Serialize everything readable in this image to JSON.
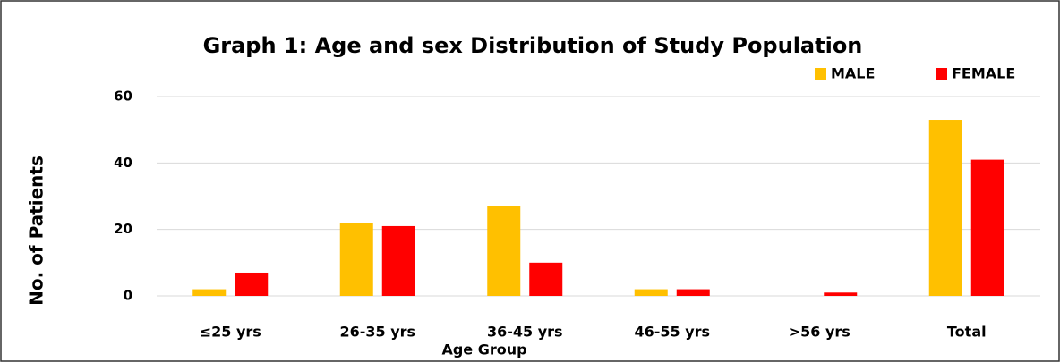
{
  "chart_data": {
    "type": "bar",
    "title": "Graph 1: Age and sex Distribution of Study Population",
    "x_label": "Age Group",
    "y_label": "No. of Patients",
    "categories": [
      "≤25 yrs",
      "26-35 yrs",
      "36-45 yrs",
      "46-55 yrs",
      ">56 yrs",
      "Total"
    ],
    "series": [
      {
        "name": "MALE",
        "color": "#ffc000",
        "values": [
          2,
          22,
          27,
          2,
          0,
          53
        ]
      },
      {
        "name": "FEMALE",
        "color": "#ff0000",
        "values": [
          7,
          21,
          10,
          2,
          1,
          41
        ]
      }
    ],
    "ylim": [
      0,
      60
    ],
    "yticks": [
      0,
      20,
      40,
      60
    ],
    "grid": true,
    "legend": "top-right"
  }
}
